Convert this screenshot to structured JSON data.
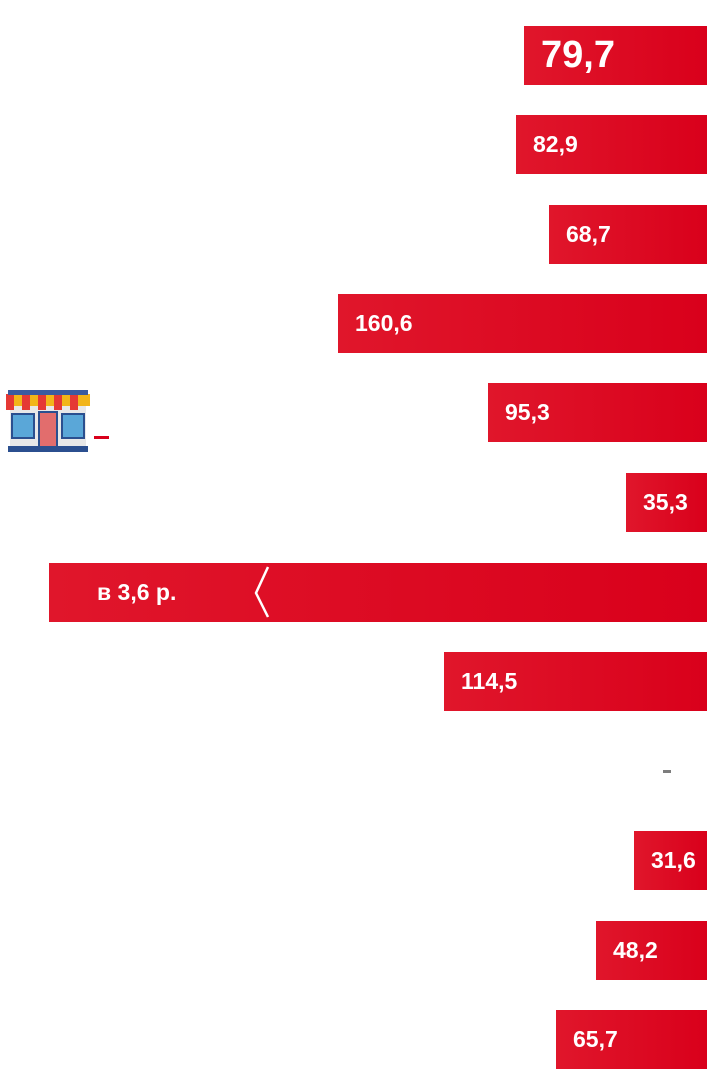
{
  "chart_data": {
    "type": "bar",
    "orientation": "horizontal",
    "colors": {
      "bar": "#d9001b",
      "label": "#ffffff"
    },
    "values": [
      79.7,
      82.9,
      68.7,
      160.6,
      95.3,
      35.3,
      286,
      114.5,
      null,
      31.6,
      48.2,
      65.7
    ],
    "labels": [
      "79,7",
      "82,9",
      "68,7",
      "160,6",
      "95,3",
      "35,3",
      "в 3,6 р.",
      "114,5",
      "-",
      "31,6",
      "48,2",
      "65,7"
    ],
    "xlim": [
      0,
      300
    ]
  },
  "icons": {
    "store": "store-icon",
    "axis_break": "axis-break-icon"
  }
}
